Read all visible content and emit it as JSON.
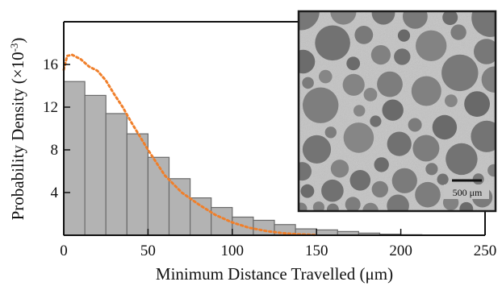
{
  "chart_data": {
    "type": "bar",
    "xlabel": "Minimum Distance Travelled (μm)",
    "ylabel_main": "Probability Density (×10",
    "ylabel_sup": "-3",
    "ylabel_close": ")",
    "xlim": [
      0,
      250
    ],
    "ylim": [
      0,
      20
    ],
    "x_ticks": [
      "0",
      "50",
      "100",
      "150",
      "200",
      "250"
    ],
    "y_ticks": [
      "4",
      "8",
      "12",
      "16"
    ],
    "bin_width": 12.5,
    "bins": [
      {
        "start": 0,
        "value": 14.4
      },
      {
        "start": 12.5,
        "value": 13.1
      },
      {
        "start": 25,
        "value": 11.4
      },
      {
        "start": 37.5,
        "value": 9.5
      },
      {
        "start": 50,
        "value": 7.3
      },
      {
        "start": 62.5,
        "value": 5.3
      },
      {
        "start": 75,
        "value": 3.5
      },
      {
        "start": 87.5,
        "value": 2.6
      },
      {
        "start": 100,
        "value": 1.7
      },
      {
        "start": 112.5,
        "value": 1.4
      },
      {
        "start": 125,
        "value": 1.0
      },
      {
        "start": 137.5,
        "value": 0.6
      },
      {
        "start": 150,
        "value": 0.5
      },
      {
        "start": 162.5,
        "value": 0.35
      },
      {
        "start": 175,
        "value": 0.2
      },
      {
        "start": 187.5,
        "value": 0.1
      },
      {
        "start": 200,
        "value": 0.05
      }
    ],
    "kde": {
      "x": [
        0,
        2,
        5,
        10,
        15,
        20,
        25,
        30,
        35,
        40,
        45,
        50,
        55,
        60,
        70,
        80,
        90,
        100,
        110,
        120,
        130,
        140,
        150
      ],
      "y": [
        15.5,
        16.8,
        16.9,
        16.5,
        15.8,
        15.4,
        14.5,
        13.2,
        12.0,
        10.6,
        9.3,
        8.0,
        6.8,
        5.6,
        4.0,
        2.9,
        1.9,
        1.2,
        0.7,
        0.4,
        0.2,
        0.08,
        0.02
      ]
    },
    "colors": {
      "bar_fill": "#b3b3b3",
      "bar_stroke": "#6b6b6b",
      "kde": "#f07f2a",
      "axis": "#111111"
    }
  },
  "inset": {
    "scale_label": "500 μm"
  }
}
